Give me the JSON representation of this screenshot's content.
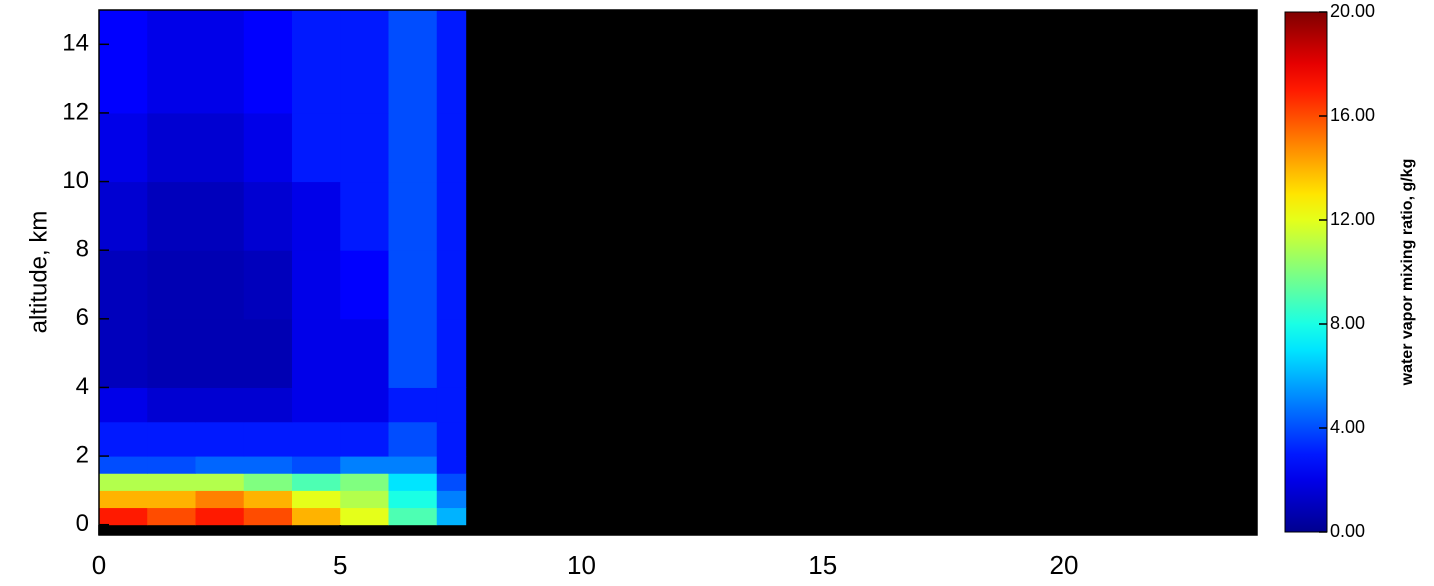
{
  "chart_data": {
    "type": "heatmap",
    "y_label": "altitude,  km",
    "colorbar_label": "water vapor mixing ratio, g/kg",
    "colormap": "jet",
    "xlim": [
      0,
      24
    ],
    "xticks": [
      0,
      5,
      10,
      15,
      20
    ],
    "ylim": [
      -0.3,
      15
    ],
    "yticks": [
      0,
      2,
      4,
      6,
      8,
      10,
      12,
      14
    ],
    "zlim": [
      0,
      20
    ],
    "zticks": [
      {
        "value": 0,
        "label": "0.00"
      },
      {
        "value": 4,
        "label": "4.00"
      },
      {
        "value": 8,
        "label": "8.00"
      },
      {
        "value": 12,
        "label": "12.00"
      },
      {
        "value": 16,
        "label": "16.00"
      },
      {
        "value": 20,
        "label": "20.00"
      }
    ],
    "background": "#000000",
    "x_bins": [
      0,
      1,
      2,
      3,
      4,
      5,
      6,
      7,
      7.6
    ],
    "y_bins": [
      0,
      0.5,
      1,
      1.5,
      2,
      3,
      4,
      6,
      8,
      10,
      12,
      15
    ],
    "z": [
      [
        17,
        16,
        17,
        16,
        14,
        12,
        9,
        6
      ],
      [
        14,
        14,
        15,
        14,
        12,
        11,
        8,
        5
      ],
      [
        11,
        11,
        11,
        10,
        9,
        10,
        7,
        4
      ],
      [
        4,
        4,
        4.5,
        4.5,
        4,
        5,
        5,
        3
      ],
      [
        3,
        3,
        3,
        3,
        3,
        3,
        4,
        3
      ],
      [
        2,
        1.5,
        1.5,
        1.5,
        2,
        2,
        3,
        3
      ],
      [
        1,
        0.8,
        0.8,
        0.8,
        2,
        2,
        4,
        3
      ],
      [
        1,
        0.8,
        0.8,
        1,
        2,
        2.5,
        4,
        3
      ],
      [
        1.5,
        1,
        1,
        1.5,
        2,
        3,
        4,
        3
      ],
      [
        2,
        1.5,
        1.5,
        2,
        3,
        3,
        4,
        3
      ],
      [
        2.5,
        2,
        2,
        2.5,
        3,
        3,
        4,
        3
      ]
    ]
  }
}
